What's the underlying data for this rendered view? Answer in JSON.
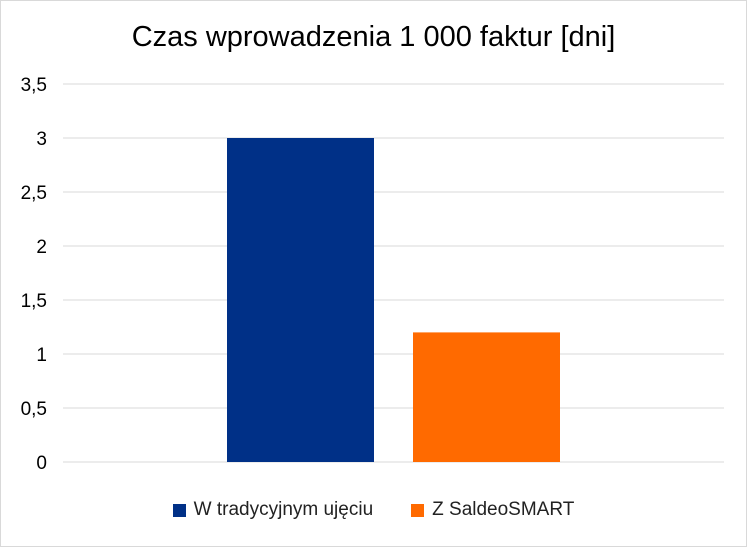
{
  "chart_data": {
    "type": "bar",
    "title": "Czas wprowadzenia 1 000 faktur [dni]",
    "xlabel": "",
    "ylabel": "",
    "ylim": [
      0,
      3.5
    ],
    "yticks": [
      "0",
      "0,5",
      "1",
      "1,5",
      "2",
      "2,5",
      "3",
      "3,5"
    ],
    "categories": [
      ""
    ],
    "series": [
      {
        "name": "W tradycyjnym ujęciu",
        "values": [
          3
        ],
        "color": "#003087"
      },
      {
        "name": "Z SaldeoSMART",
        "values": [
          1.2
        ],
        "color": "#ff6a00"
      }
    ],
    "grid": true,
    "legend_position": "bottom"
  }
}
